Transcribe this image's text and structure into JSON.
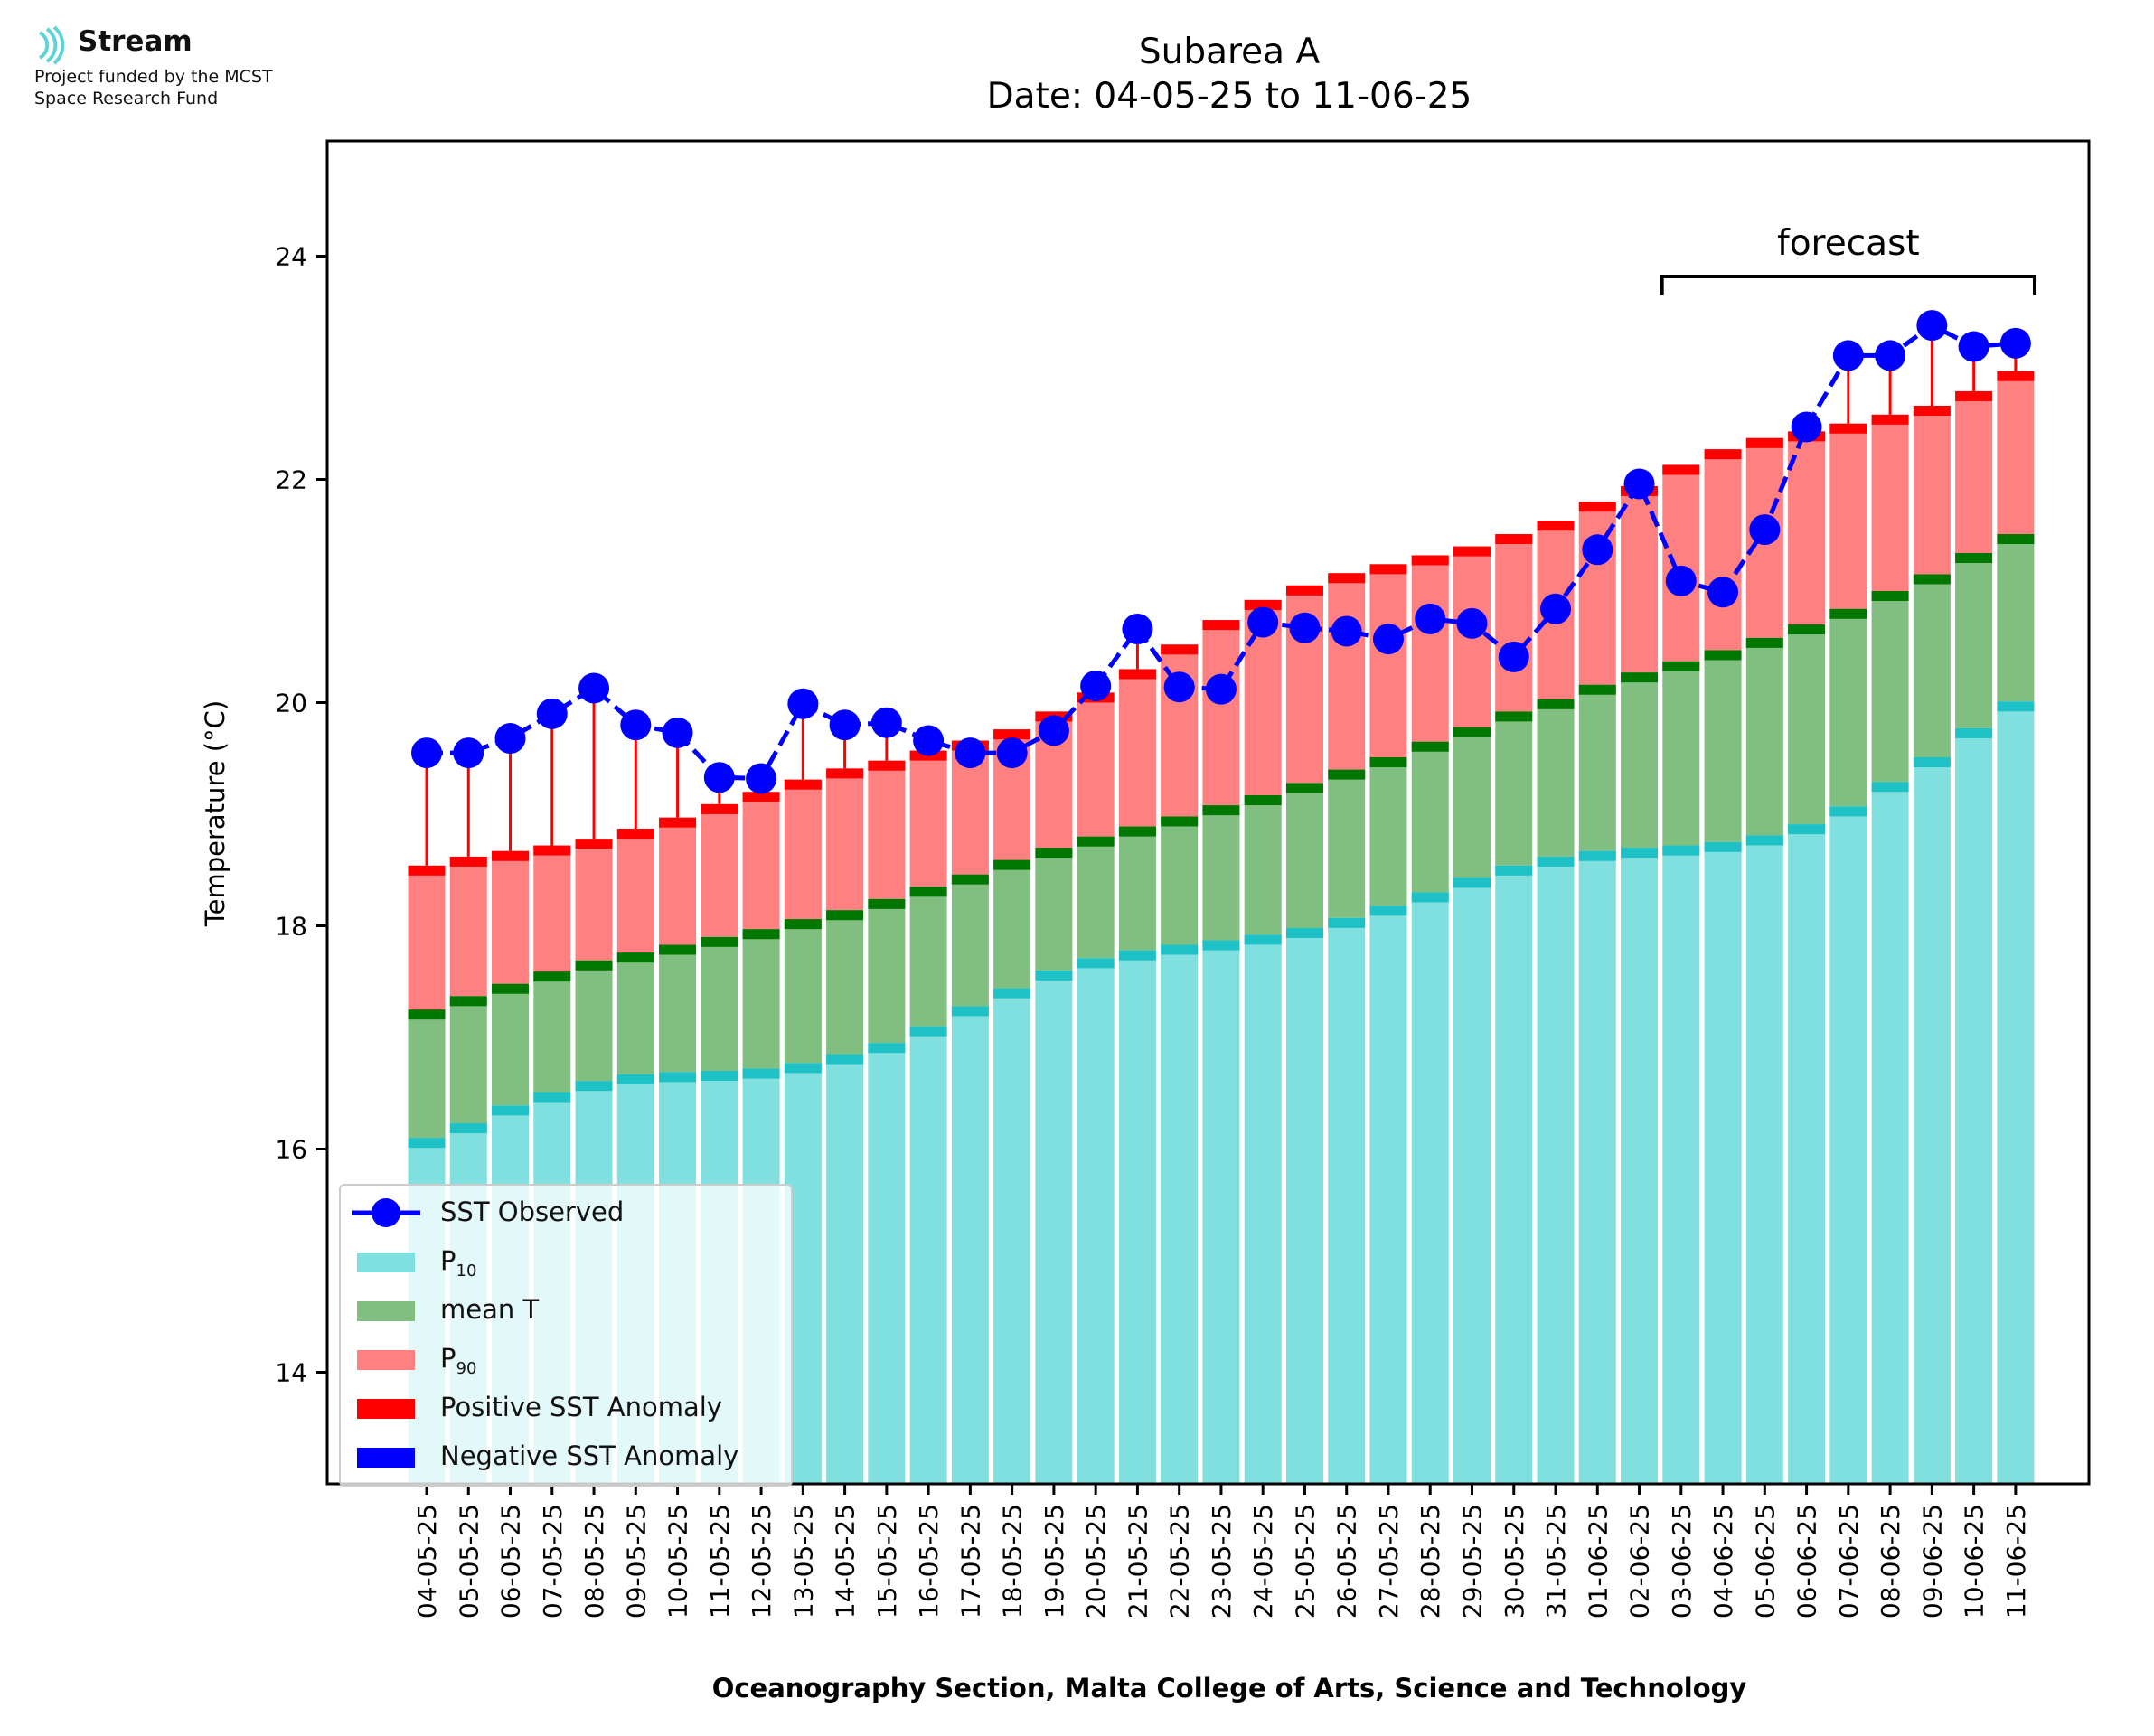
{
  "logo": {
    "name": "Stream",
    "funding_line1": "Project funded by the MCST",
    "funding_line2": "Space Research Fund",
    "icon": "stream-waves-icon"
  },
  "chart_data": {
    "type": "bar",
    "title": "Subarea A",
    "subtitle": "Date: 04-05-25 to 11-06-25",
    "xlabel": "Oceanography Section, Malta College of Arts, Science and Technology",
    "ylabel": "Temperature (°C)",
    "ylim": [
      13,
      25
    ],
    "yticks": [
      14,
      16,
      18,
      20,
      22,
      24
    ],
    "grid": false,
    "legend_position": "bottom-left",
    "forecast_label": "forecast",
    "forecast_range": [
      "03-06-25",
      "11-06-25"
    ],
    "categories": [
      "04-05-25",
      "05-05-25",
      "06-05-25",
      "07-05-25",
      "08-05-25",
      "09-05-25",
      "10-05-25",
      "11-05-25",
      "12-05-25",
      "13-05-25",
      "14-05-25",
      "15-05-25",
      "16-05-25",
      "17-05-25",
      "18-05-25",
      "19-05-25",
      "20-05-25",
      "21-05-25",
      "22-05-25",
      "23-05-25",
      "24-05-25",
      "25-05-25",
      "26-05-25",
      "27-05-25",
      "28-05-25",
      "29-05-25",
      "30-05-25",
      "31-05-25",
      "01-06-25",
      "02-06-25",
      "03-06-25",
      "04-06-25",
      "05-06-25",
      "06-06-25",
      "07-06-25",
      "08-06-25",
      "09-06-25",
      "10-06-25",
      "11-06-25"
    ],
    "series": [
      {
        "name": "SST Observed",
        "type": "line",
        "color": "#0000ff",
        "values": [
          19.55,
          19.55,
          19.68,
          19.9,
          20.13,
          19.8,
          19.73,
          19.33,
          19.32,
          19.99,
          19.8,
          19.82,
          19.66,
          19.55,
          19.55,
          19.75,
          20.15,
          20.66,
          20.14,
          20.12,
          20.72,
          20.67,
          20.64,
          20.57,
          20.75,
          20.71,
          20.41,
          20.84,
          21.37,
          21.96,
          21.09,
          20.99,
          21.55,
          22.47,
          23.11,
          23.11,
          23.38,
          23.19,
          23.22
        ]
      },
      {
        "name": "P10",
        "type": "bar",
        "color": "#80dfdf",
        "values": [
          16.1,
          16.23,
          16.39,
          16.51,
          16.61,
          16.67,
          16.69,
          16.7,
          16.72,
          16.77,
          16.85,
          16.95,
          17.1,
          17.28,
          17.44,
          17.6,
          17.71,
          17.78,
          17.83,
          17.87,
          17.92,
          17.98,
          18.07,
          18.18,
          18.3,
          18.43,
          18.54,
          18.62,
          18.67,
          18.7,
          18.72,
          18.75,
          18.81,
          18.91,
          19.07,
          19.29,
          19.51,
          19.77,
          20.01
        ]
      },
      {
        "name": "mean T",
        "type": "bar",
        "color": "#80bf80",
        "values": [
          17.25,
          17.37,
          17.48,
          17.59,
          17.69,
          17.76,
          17.83,
          17.9,
          17.97,
          18.06,
          18.14,
          18.24,
          18.35,
          18.46,
          18.59,
          18.7,
          18.8,
          18.89,
          18.98,
          19.08,
          19.17,
          19.28,
          19.4,
          19.51,
          19.65,
          19.78,
          19.92,
          20.03,
          20.16,
          20.27,
          20.37,
          20.47,
          20.58,
          20.7,
          20.84,
          21.0,
          21.15,
          21.34,
          21.51
        ]
      },
      {
        "name": "P90",
        "type": "bar",
        "color": "#ff8080",
        "values": [
          18.54,
          18.62,
          18.67,
          18.72,
          18.78,
          18.87,
          18.97,
          19.09,
          19.2,
          19.31,
          19.41,
          19.48,
          19.57,
          19.66,
          19.76,
          19.92,
          20.09,
          20.3,
          20.52,
          20.74,
          20.92,
          21.05,
          21.16,
          21.24,
          21.32,
          21.4,
          21.51,
          21.63,
          21.8,
          21.94,
          22.13,
          22.27,
          22.37,
          22.43,
          22.5,
          22.58,
          22.66,
          22.79,
          22.97
        ]
      }
    ],
    "legend": [
      {
        "label": "SST Observed",
        "kind": "line-marker",
        "color": "#0000ff"
      },
      {
        "label": "P",
        "sub": "10",
        "kind": "patch",
        "color": "#80dfdf"
      },
      {
        "label": "mean T",
        "kind": "patch",
        "color": "#80bf80"
      },
      {
        "label": "P",
        "sub": "90",
        "kind": "patch",
        "color": "#ff8080"
      },
      {
        "label": "Positive SST Anomaly",
        "kind": "patch",
        "color": "#ff0000"
      },
      {
        "label": "Negative SST Anomaly",
        "kind": "patch",
        "color": "#0000ff"
      }
    ],
    "colors": {
      "p10_cap": "#1ec1c6",
      "mean_cap": "#007700",
      "p90_cap": "#ff0000",
      "positive_anomaly": "#ff0000",
      "negative_anomaly": "#0000ff"
    }
  }
}
